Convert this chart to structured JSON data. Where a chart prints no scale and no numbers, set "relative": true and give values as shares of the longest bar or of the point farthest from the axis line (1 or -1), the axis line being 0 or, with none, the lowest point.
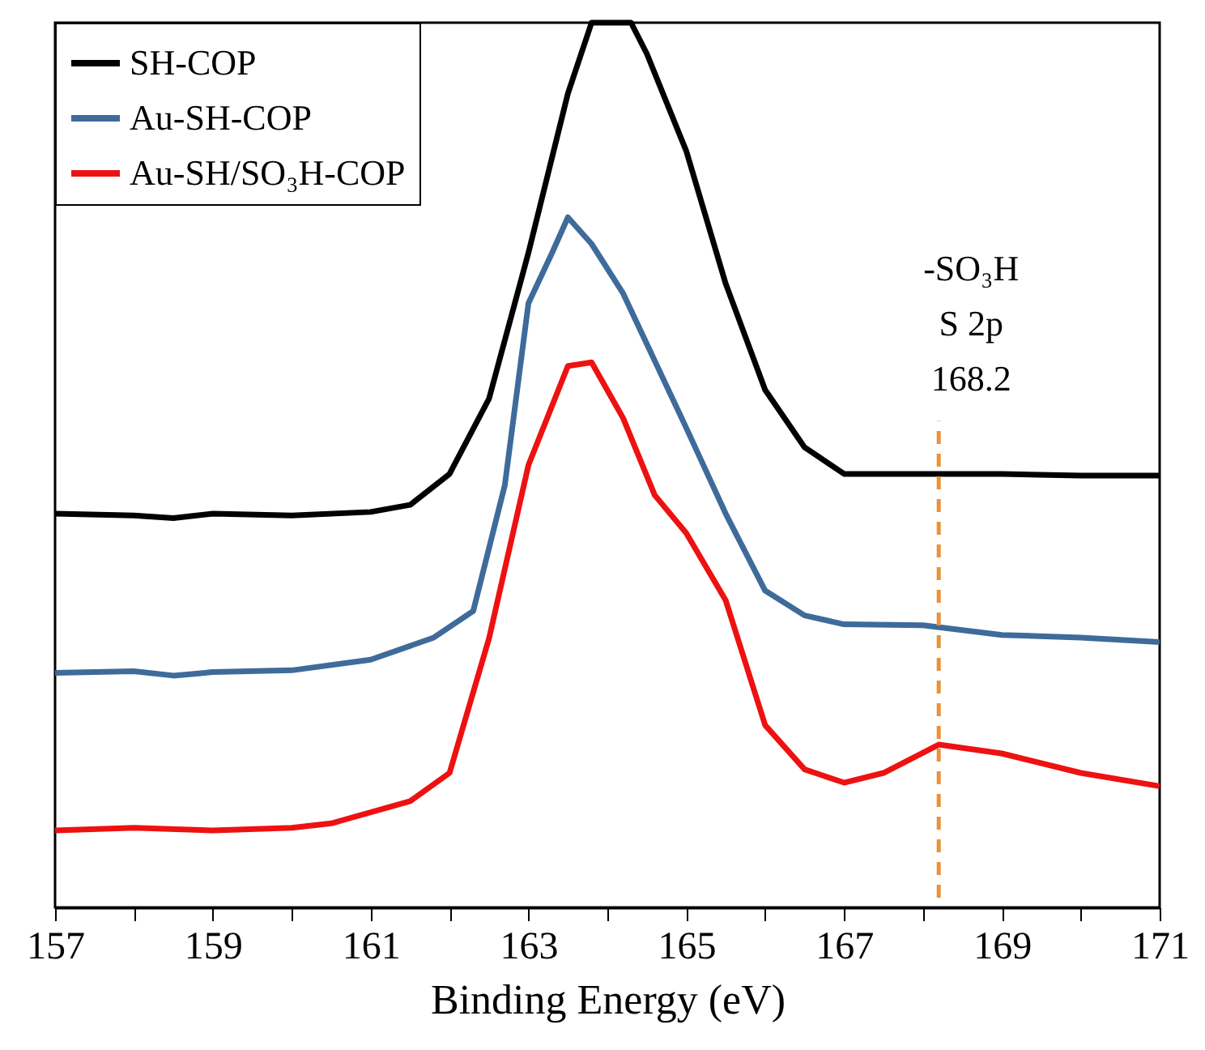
{
  "chart_data": {
    "type": "line",
    "xlabel": "Binding Energy (eV)",
    "relative": true,
    "legend": "top left",
    "grid": false,
    "marker": "none",
    "line_style": "solid",
    "xlim": [
      157,
      171
    ],
    "xticks": [
      157,
      {
        "value": 158,
        "label": null
      },
      159,
      {
        "value": 160,
        "label": null
      },
      161,
      {
        "value": 162,
        "label": null
      },
      163,
      {
        "value": 164,
        "label": null
      },
      165,
      {
        "value": 166,
        "label": null
      },
      167,
      {
        "value": 168,
        "label": null
      },
      169,
      {
        "value": 170,
        "label": null
      },
      171
    ],
    "series": [
      {
        "name": "SH-COP",
        "color": "#000000",
        "x": [
          157,
          158,
          158.5,
          159,
          160,
          161,
          161.5,
          162,
          162.5,
          163,
          163.5,
          163.8,
          164.3,
          164.5,
          165,
          165.5,
          166,
          166.5,
          167,
          168,
          169,
          170,
          171
        ],
        "values": [
          0.445,
          0.443,
          0.44,
          0.445,
          0.443,
          0.447,
          0.455,
          0.49,
          0.575,
          0.74,
          0.92,
          1.0,
          1.0,
          0.965,
          0.855,
          0.705,
          0.585,
          0.52,
          0.49,
          0.49,
          0.49,
          0.488,
          0.488
        ]
      },
      {
        "name": "Au-SH-COP",
        "color": "#3e6b9a",
        "x": [
          157,
          158,
          158.5,
          159,
          160,
          161,
          161.8,
          162.3,
          162.7,
          163,
          163.3,
          163.5,
          163.8,
          164.2,
          164.6,
          165,
          165.5,
          166,
          166.5,
          167,
          168,
          169,
          170,
          171
        ],
        "values": [
          0.265,
          0.267,
          0.262,
          0.266,
          0.268,
          0.28,
          0.305,
          0.335,
          0.477,
          0.683,
          0.74,
          0.78,
          0.75,
          0.694,
          0.618,
          0.542,
          0.445,
          0.358,
          0.33,
          0.32,
          0.319,
          0.308,
          0.305,
          0.3
        ]
      },
      {
        "name": "Au-SH/SO₃H-COP",
        "color": "#ee1111",
        "x": [
          157,
          158,
          159,
          160,
          160.5,
          161.5,
          162,
          162.5,
          163,
          163.5,
          163.8,
          164.2,
          164.6,
          165,
          165.5,
          166,
          166.5,
          167,
          167.5,
          168.2,
          169,
          170,
          171
        ],
        "values": [
          0.087,
          0.09,
          0.087,
          0.09,
          0.095,
          0.12,
          0.152,
          0.304,
          0.5,
          0.612,
          0.616,
          0.553,
          0.466,
          0.423,
          0.347,
          0.206,
          0.156,
          0.141,
          0.152,
          0.184,
          0.174,
          0.152,
          0.137
        ]
      }
    ],
    "ref_lines": [
      {
        "axis": "x",
        "value": 168.2,
        "label": "-SO₃H\nS 2p\n168.2",
        "color": "#e8923a",
        "line_style": "dashed"
      }
    ]
  }
}
